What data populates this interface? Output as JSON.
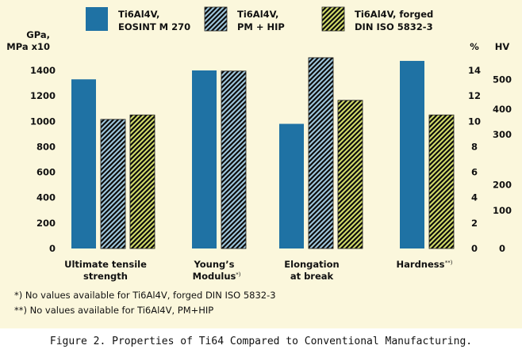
{
  "chart_data": {
    "type": "bar",
    "categories": [
      [
        "Ultimate tensile",
        "strength"
      ],
      [
        "Young’s",
        "Modulus"
      ],
      [
        "Elongation",
        "at break"
      ],
      [
        "Hardness"
      ]
    ],
    "category_notes": [
      "",
      "*)",
      "",
      "**)"
    ],
    "series": [
      {
        "name": "Ti6Al4V, EOSINT M 270",
        "legend": [
          "Ti6Al4V,",
          "EOSINT M 270"
        ],
        "pattern": "solid",
        "values": [
          1330,
          1400,
          980,
          1475
        ]
      },
      {
        "name": "Ti6Al4V, PM + HIP",
        "legend": [
          "Ti6Al4V,",
          "PM + HIP"
        ],
        "pattern": "hatch-blue",
        "values": [
          1015,
          1395,
          1500,
          null
        ]
      },
      {
        "name": "Ti6Al4V, forged DIN ISO 5832-3",
        "legend": [
          "Ti6Al4V, forged",
          "DIN ISO 5832-3"
        ],
        "pattern": "hatch-green",
        "values": [
          1050,
          null,
          1165,
          1050
        ]
      }
    ],
    "axis_left": {
      "label": [
        "GPa,",
        "MPa x10"
      ],
      "ticks": [
        0,
        200,
        400,
        600,
        800,
        1000,
        1200,
        1400
      ],
      "ylim": [
        0,
        1550
      ]
    },
    "axis_pct": {
      "label": "%",
      "ticks": [
        0,
        2,
        4,
        6,
        8,
        10,
        12,
        14
      ]
    },
    "axis_hv": {
      "label": "HV",
      "ticks": [
        "500",
        "400",
        "300",
        "200",
        "100",
        "0"
      ],
      "tick_at": [
        1330,
        1095,
        895,
        500,
        300,
        0
      ]
    }
  },
  "colors": {
    "primary": "#1f72a4",
    "hatch_dark": "#0d0d0d",
    "hatch_blue": "#9fc7dd",
    "hatch_green": "#d2dc6a",
    "panel": "#fbf7dc"
  },
  "footnotes": [
    "*) No values available for Ti6Al4V, forged DIN ISO 5832-3",
    "**) No values available for Ti6Al4V, PM+HIP"
  ],
  "caption": "Figure 2. Properties of Ti64 Compared to Conventional Manufacturing."
}
